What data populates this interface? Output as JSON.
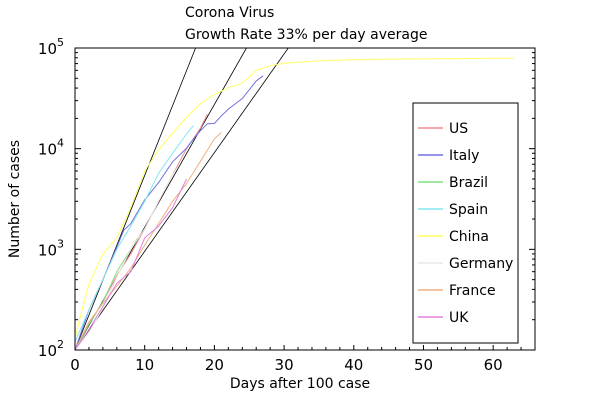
{
  "chart_data": {
    "type": "line",
    "title": "Corona Virus",
    "subtitle": "Growth Rate 33% per day average",
    "xlabel": "Days after 100 case",
    "ylabel": "Number of cases",
    "xlim": [
      0,
      66
    ],
    "ylim": [
      100,
      100000
    ],
    "yscale": "log",
    "x_ticks": [
      0,
      10,
      20,
      30,
      40,
      50,
      60
    ],
    "y_ticks": [
      {
        "value": 100,
        "base": "10",
        "exp": "2"
      },
      {
        "value": 1000,
        "base": "10",
        "exp": "3"
      },
      {
        "value": 10000,
        "base": "10",
        "exp": "4"
      },
      {
        "value": 100000,
        "base": "10",
        "exp": "5"
      }
    ],
    "grid": false,
    "legend_position": "right",
    "reference_lines": [
      {
        "x": [
          0,
          17.3
        ],
        "y": [
          100,
          100000
        ]
      },
      {
        "x": [
          0,
          24.6
        ],
        "y": [
          100,
          100000
        ]
      },
      {
        "x": [
          0,
          30.6
        ],
        "y": [
          100,
          100000
        ]
      }
    ],
    "series": [
      {
        "name": "US",
        "color": "#f08a8a",
        "x": [
          0,
          2,
          4,
          6,
          8,
          10,
          12,
          14,
          16,
          18,
          19
        ],
        "y": [
          100,
          180,
          300,
          550,
          900,
          1600,
          3000,
          5500,
          10000,
          16000,
          22000
        ]
      },
      {
        "name": "Italy",
        "color": "#7070e0",
        "x": [
          0,
          2,
          4,
          6,
          7,
          8,
          10,
          12,
          14,
          16,
          17,
          18,
          19,
          20,
          21,
          22,
          24,
          26,
          27
        ],
        "y": [
          100,
          250,
          500,
          1050,
          1550,
          1800,
          3100,
          4600,
          7400,
          10100,
          12500,
          15100,
          17700,
          17800,
          21200,
          24700,
          31500,
          47000,
          53000
        ]
      },
      {
        "name": "Brazil",
        "color": "#80e080",
        "x": [
          0,
          2,
          4,
          6,
          8,
          9
        ],
        "y": [
          100,
          180,
          300,
          600,
          1000,
          1300
        ]
      },
      {
        "name": "Spain",
        "color": "#80e8f0",
        "x": [
          0,
          2,
          4,
          6,
          8,
          10,
          12,
          14,
          16,
          17
        ],
        "y": [
          120,
          250,
          500,
          1000,
          1700,
          3000,
          5700,
          9000,
          14000,
          17000
        ]
      },
      {
        "name": "China",
        "color": "#ffff60",
        "x": [
          0,
          1,
          2,
          4,
          6,
          8,
          10,
          12,
          14,
          16,
          18,
          20,
          22,
          24,
          26,
          28,
          30,
          35,
          40,
          45,
          50,
          55,
          60,
          63
        ],
        "y": [
          130,
          250,
          450,
          900,
          1300,
          2600,
          6000,
          9700,
          14300,
          20400,
          28000,
          34500,
          40200,
          44700,
          59800,
          66500,
          70500,
          74500,
          76500,
          77500,
          78000,
          78500,
          79000,
          79000
        ]
      },
      {
        "name": "Germany",
        "color": "#e8e8e8",
        "x": [
          0,
          2,
          4,
          6,
          8,
          10,
          12,
          14,
          15
        ],
        "y": [
          100,
          150,
          260,
          530,
          1000,
          1600,
          3000,
          5500,
          7000
        ]
      },
      {
        "name": "France",
        "color": "#f0b080",
        "x": [
          0,
          2,
          4,
          6,
          8,
          10,
          12,
          14,
          16,
          18,
          20,
          21
        ],
        "y": [
          100,
          190,
          290,
          430,
          650,
          1100,
          1800,
          3000,
          4500,
          7500,
          12500,
          14500
        ]
      },
      {
        "name": "UK",
        "color": "#e080e0",
        "x": [
          0,
          2,
          4,
          6,
          8,
          10,
          12,
          14,
          16
        ],
        "y": [
          100,
          160,
          270,
          460,
          600,
          1300,
          1700,
          2600,
          5000
        ]
      }
    ]
  }
}
